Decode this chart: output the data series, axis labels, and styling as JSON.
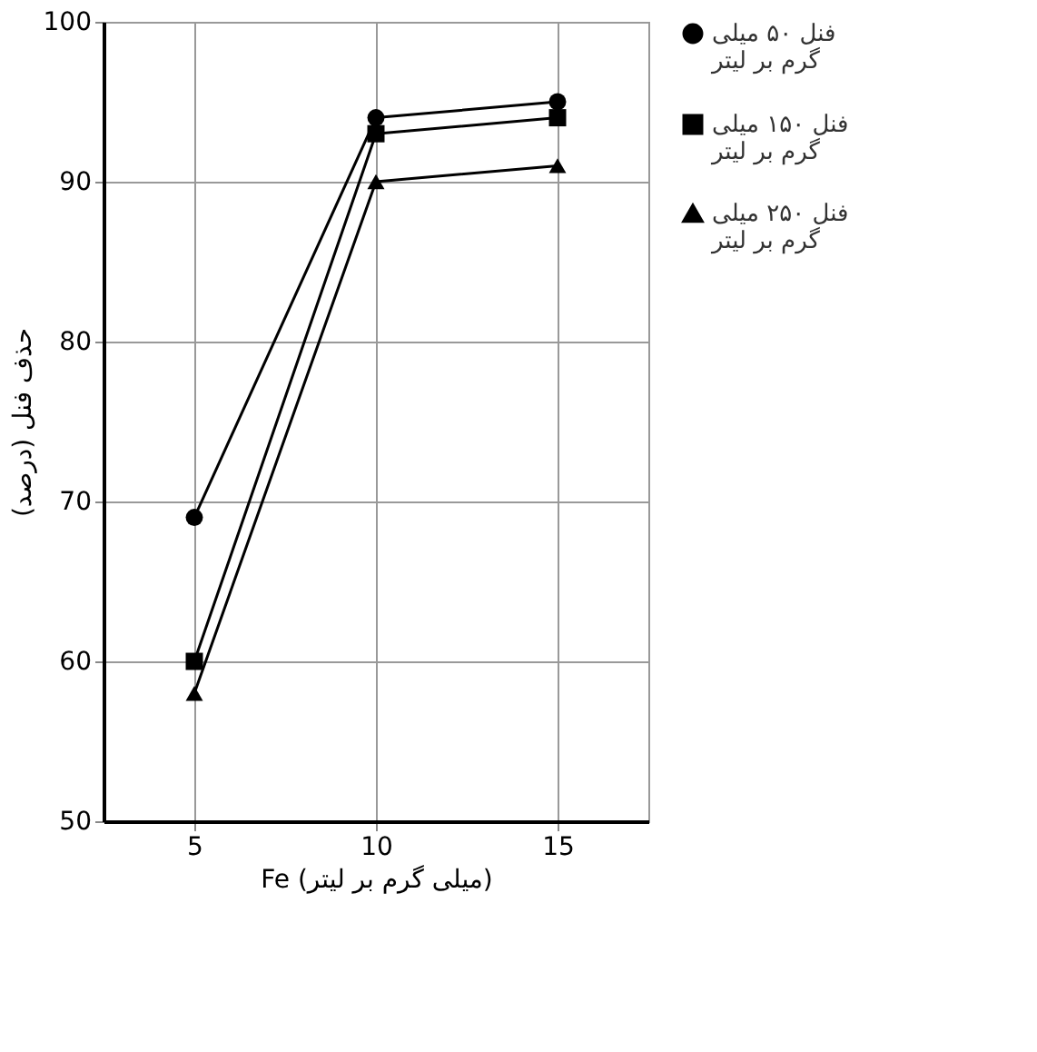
{
  "chart_data": {
    "type": "line",
    "xlabel": "Fe (میلی گرم بر لیتر)",
    "ylabel": "حذف فنل (درصد)",
    "categories": [
      "5",
      "10",
      "15"
    ],
    "series": [
      {
        "name": "فنل ۵۰ میلی گرم بر لیتر",
        "color": "#000000",
        "marker": "circle",
        "values": [
          69,
          94,
          95
        ]
      },
      {
        "name": "فنل ۱۵۰ میلی گرم بر لیتر",
        "color": "#000000",
        "marker": "square",
        "values": [
          60,
          93,
          94
        ]
      },
      {
        "name": "فنل ۲۵۰ میلی گرم بر لیتر",
        "color": "#000000",
        "marker": "triangle",
        "values": [
          58,
          90,
          91
        ]
      }
    ],
    "ylim": [
      50,
      100
    ],
    "yticks": [
      50,
      60,
      70,
      80,
      90,
      100
    ],
    "grid": true,
    "legend": "right",
    "line_style": "solid"
  }
}
